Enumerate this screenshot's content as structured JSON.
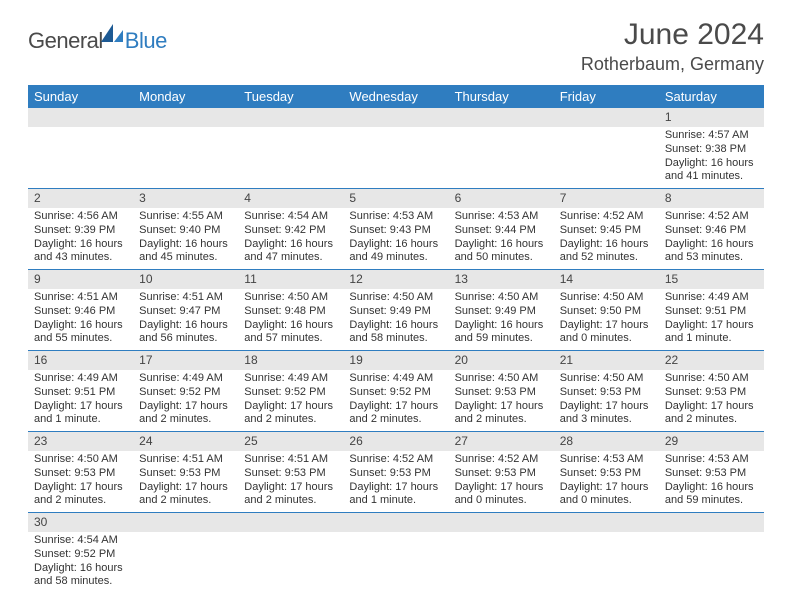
{
  "logo": {
    "text1": "General",
    "text2": "Blue"
  },
  "title": "June 2024",
  "location": "Rotherbaum, Germany",
  "day_headers": [
    "Sunday",
    "Monday",
    "Tuesday",
    "Wednesday",
    "Thursday",
    "Friday",
    "Saturday"
  ],
  "colors": {
    "header_bg": "#2f7dc0",
    "header_text": "#ffffff",
    "daynum_bg": "#e7e7e7",
    "border": "#2f7dc0",
    "text": "#333333",
    "title_text": "#4a4a4a"
  },
  "weeks": [
    [
      {
        "day": "",
        "lines": []
      },
      {
        "day": "",
        "lines": []
      },
      {
        "day": "",
        "lines": []
      },
      {
        "day": "",
        "lines": []
      },
      {
        "day": "",
        "lines": []
      },
      {
        "day": "",
        "lines": []
      },
      {
        "day": "1",
        "lines": [
          "Sunrise: 4:57 AM",
          "Sunset: 9:38 PM",
          "Daylight: 16 hours and 41 minutes."
        ]
      }
    ],
    [
      {
        "day": "2",
        "lines": [
          "Sunrise: 4:56 AM",
          "Sunset: 9:39 PM",
          "Daylight: 16 hours and 43 minutes."
        ]
      },
      {
        "day": "3",
        "lines": [
          "Sunrise: 4:55 AM",
          "Sunset: 9:40 PM",
          "Daylight: 16 hours and 45 minutes."
        ]
      },
      {
        "day": "4",
        "lines": [
          "Sunrise: 4:54 AM",
          "Sunset: 9:42 PM",
          "Daylight: 16 hours and 47 minutes."
        ]
      },
      {
        "day": "5",
        "lines": [
          "Sunrise: 4:53 AM",
          "Sunset: 9:43 PM",
          "Daylight: 16 hours and 49 minutes."
        ]
      },
      {
        "day": "6",
        "lines": [
          "Sunrise: 4:53 AM",
          "Sunset: 9:44 PM",
          "Daylight: 16 hours and 50 minutes."
        ]
      },
      {
        "day": "7",
        "lines": [
          "Sunrise: 4:52 AM",
          "Sunset: 9:45 PM",
          "Daylight: 16 hours and 52 minutes."
        ]
      },
      {
        "day": "8",
        "lines": [
          "Sunrise: 4:52 AM",
          "Sunset: 9:46 PM",
          "Daylight: 16 hours and 53 minutes."
        ]
      }
    ],
    [
      {
        "day": "9",
        "lines": [
          "Sunrise: 4:51 AM",
          "Sunset: 9:46 PM",
          "Daylight: 16 hours and 55 minutes."
        ]
      },
      {
        "day": "10",
        "lines": [
          "Sunrise: 4:51 AM",
          "Sunset: 9:47 PM",
          "Daylight: 16 hours and 56 minutes."
        ]
      },
      {
        "day": "11",
        "lines": [
          "Sunrise: 4:50 AM",
          "Sunset: 9:48 PM",
          "Daylight: 16 hours and 57 minutes."
        ]
      },
      {
        "day": "12",
        "lines": [
          "Sunrise: 4:50 AM",
          "Sunset: 9:49 PM",
          "Daylight: 16 hours and 58 minutes."
        ]
      },
      {
        "day": "13",
        "lines": [
          "Sunrise: 4:50 AM",
          "Sunset: 9:49 PM",
          "Daylight: 16 hours and 59 minutes."
        ]
      },
      {
        "day": "14",
        "lines": [
          "Sunrise: 4:50 AM",
          "Sunset: 9:50 PM",
          "Daylight: 17 hours and 0 minutes."
        ]
      },
      {
        "day": "15",
        "lines": [
          "Sunrise: 4:49 AM",
          "Sunset: 9:51 PM",
          "Daylight: 17 hours and 1 minute."
        ]
      }
    ],
    [
      {
        "day": "16",
        "lines": [
          "Sunrise: 4:49 AM",
          "Sunset: 9:51 PM",
          "Daylight: 17 hours and 1 minute."
        ]
      },
      {
        "day": "17",
        "lines": [
          "Sunrise: 4:49 AM",
          "Sunset: 9:52 PM",
          "Daylight: 17 hours and 2 minutes."
        ]
      },
      {
        "day": "18",
        "lines": [
          "Sunrise: 4:49 AM",
          "Sunset: 9:52 PM",
          "Daylight: 17 hours and 2 minutes."
        ]
      },
      {
        "day": "19",
        "lines": [
          "Sunrise: 4:49 AM",
          "Sunset: 9:52 PM",
          "Daylight: 17 hours and 2 minutes."
        ]
      },
      {
        "day": "20",
        "lines": [
          "Sunrise: 4:50 AM",
          "Sunset: 9:53 PM",
          "Daylight: 17 hours and 2 minutes."
        ]
      },
      {
        "day": "21",
        "lines": [
          "Sunrise: 4:50 AM",
          "Sunset: 9:53 PM",
          "Daylight: 17 hours and 3 minutes."
        ]
      },
      {
        "day": "22",
        "lines": [
          "Sunrise: 4:50 AM",
          "Sunset: 9:53 PM",
          "Daylight: 17 hours and 2 minutes."
        ]
      }
    ],
    [
      {
        "day": "23",
        "lines": [
          "Sunrise: 4:50 AM",
          "Sunset: 9:53 PM",
          "Daylight: 17 hours and 2 minutes."
        ]
      },
      {
        "day": "24",
        "lines": [
          "Sunrise: 4:51 AM",
          "Sunset: 9:53 PM",
          "Daylight: 17 hours and 2 minutes."
        ]
      },
      {
        "day": "25",
        "lines": [
          "Sunrise: 4:51 AM",
          "Sunset: 9:53 PM",
          "Daylight: 17 hours and 2 minutes."
        ]
      },
      {
        "day": "26",
        "lines": [
          "Sunrise: 4:52 AM",
          "Sunset: 9:53 PM",
          "Daylight: 17 hours and 1 minute."
        ]
      },
      {
        "day": "27",
        "lines": [
          "Sunrise: 4:52 AM",
          "Sunset: 9:53 PM",
          "Daylight: 17 hours and 0 minutes."
        ]
      },
      {
        "day": "28",
        "lines": [
          "Sunrise: 4:53 AM",
          "Sunset: 9:53 PM",
          "Daylight: 17 hours and 0 minutes."
        ]
      },
      {
        "day": "29",
        "lines": [
          "Sunrise: 4:53 AM",
          "Sunset: 9:53 PM",
          "Daylight: 16 hours and 59 minutes."
        ]
      }
    ],
    [
      {
        "day": "30",
        "lines": [
          "Sunrise: 4:54 AM",
          "Sunset: 9:52 PM",
          "Daylight: 16 hours and 58 minutes."
        ]
      },
      {
        "day": "",
        "lines": []
      },
      {
        "day": "",
        "lines": []
      },
      {
        "day": "",
        "lines": []
      },
      {
        "day": "",
        "lines": []
      },
      {
        "day": "",
        "lines": []
      },
      {
        "day": "",
        "lines": []
      }
    ]
  ]
}
